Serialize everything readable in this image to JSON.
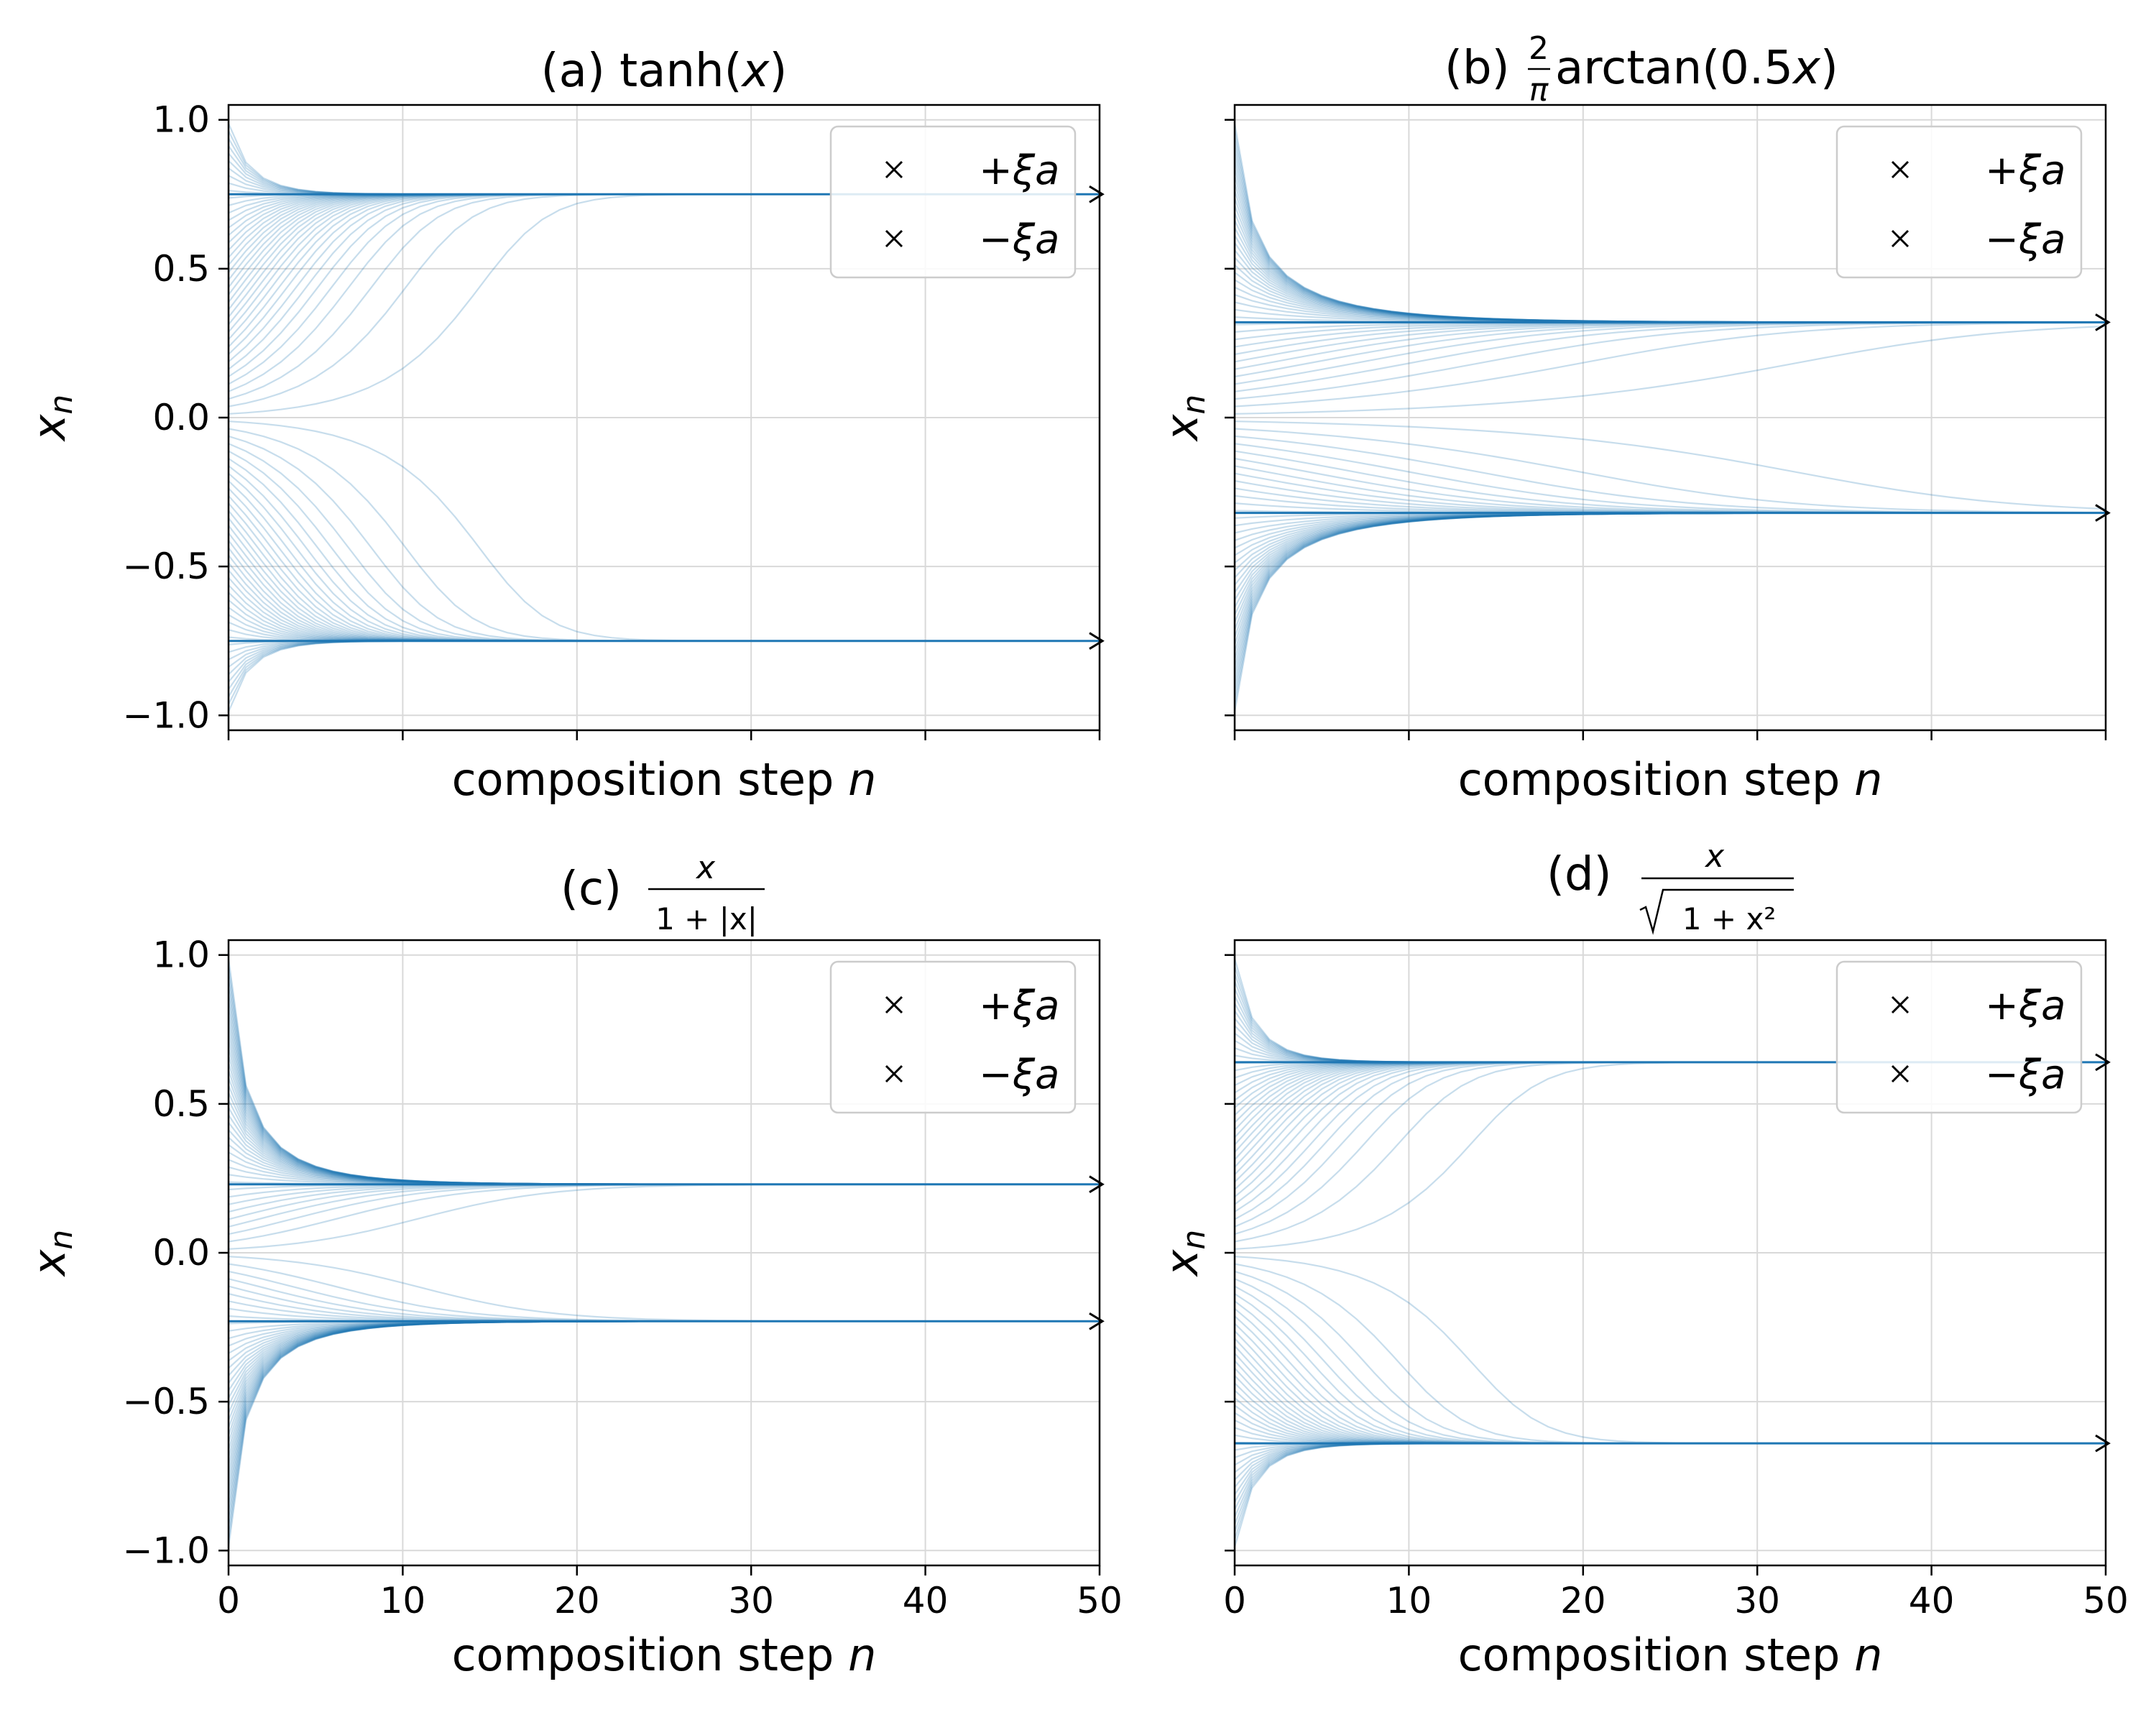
{
  "figure": {
    "xlabel": "composition step n",
    "ylabel": "x_n"
  },
  "chart_data": [
    {
      "type": "line",
      "title": "(a) tanh(x)",
      "title_parts": {
        "prefix": "(a) ",
        "text": "tanh(",
        "var": "x",
        "suffix": ")"
      },
      "function": "tanh",
      "xlabel": "composition step n",
      "ylabel": "x_n",
      "xlim": [
        0,
        50
      ],
      "ylim": [
        -1.05,
        1.05
      ],
      "xticks": [
        0,
        10,
        20,
        30,
        40,
        50
      ],
      "yticks": [
        -1.0,
        -0.5,
        0.0,
        0.5,
        1.0
      ],
      "ytick_labels": [
        "−1.0",
        "−0.5",
        "0.0",
        "0.5",
        "1.0"
      ],
      "show_xtick_labels": false,
      "show_ytick_labels": true,
      "grid": true,
      "fixed_points": [
        0.75,
        -0.75
      ],
      "initial_values_range": [
        -1.0,
        1.0
      ],
      "num_trajectories": 80,
      "steps": 50,
      "legend": {
        "position": "top-right",
        "entries": [
          "+ξa",
          "−ξa"
        ]
      }
    },
    {
      "type": "line",
      "title": "(b) 2/π arctan(0.5x)",
      "title_parts": {
        "prefix": "(b) ",
        "num": "2",
        "den": "π",
        "text": "arctan(0.5",
        "var": "x",
        "suffix": ")"
      },
      "function": "arctan",
      "xlabel": "composition step n",
      "ylabel": "x_n",
      "xlim": [
        0,
        50
      ],
      "ylim": [
        -1.05,
        1.05
      ],
      "xticks": [
        0,
        10,
        20,
        30,
        40,
        50
      ],
      "yticks": [
        -1.0,
        -0.5,
        0.0,
        0.5,
        1.0
      ],
      "show_xtick_labels": false,
      "show_ytick_labels": false,
      "grid": true,
      "fixed_points": [
        0.32,
        -0.32
      ],
      "initial_values_range": [
        -1.0,
        1.0
      ],
      "num_trajectories": 80,
      "steps": 50,
      "legend": {
        "position": "top-right",
        "entries": [
          "+ξa",
          "−ξa"
        ]
      }
    },
    {
      "type": "line",
      "title": "(c) x / (1+|x|)",
      "title_parts": {
        "prefix": "(c) ",
        "num": "x",
        "den": "1 + |x|"
      },
      "function": "softsign",
      "xlabel": "composition step n",
      "ylabel": "x_n",
      "xlim": [
        0,
        50
      ],
      "ylim": [
        -1.05,
        1.05
      ],
      "xticks": [
        0,
        10,
        20,
        30,
        40,
        50
      ],
      "xtick_labels": [
        "0",
        "10",
        "20",
        "30",
        "40",
        "50"
      ],
      "yticks": [
        -1.0,
        -0.5,
        0.0,
        0.5,
        1.0
      ],
      "ytick_labels": [
        "−1.0",
        "−0.5",
        "0.0",
        "0.5",
        "1.0"
      ],
      "show_xtick_labels": true,
      "show_ytick_labels": true,
      "grid": true,
      "fixed_points": [
        0.23,
        -0.23
      ],
      "initial_values_range": [
        -1.0,
        1.0
      ],
      "num_trajectories": 80,
      "steps": 50,
      "legend": {
        "position": "top-right",
        "entries": [
          "+ξa",
          "−ξa"
        ]
      }
    },
    {
      "type": "line",
      "title": "(d) x / √(1+x²)",
      "title_parts": {
        "prefix": "(d) ",
        "num": "x",
        "den": "1 + x²"
      },
      "function": "isru",
      "xlabel": "composition step n",
      "ylabel": "x_n",
      "xlim": [
        0,
        50
      ],
      "ylim": [
        -1.05,
        1.05
      ],
      "xticks": [
        0,
        10,
        20,
        30,
        40,
        50
      ],
      "xtick_labels": [
        "0",
        "10",
        "20",
        "30",
        "40",
        "50"
      ],
      "yticks": [
        -1.0,
        -0.5,
        0.0,
        0.5,
        1.0
      ],
      "show_xtick_labels": true,
      "show_ytick_labels": false,
      "grid": true,
      "fixed_points": [
        0.64,
        -0.64
      ],
      "initial_values_range": [
        -1.0,
        1.0
      ],
      "num_trajectories": 80,
      "steps": 50,
      "legend": {
        "position": "top-right",
        "entries": [
          "+ξa",
          "−ξa"
        ]
      }
    }
  ]
}
